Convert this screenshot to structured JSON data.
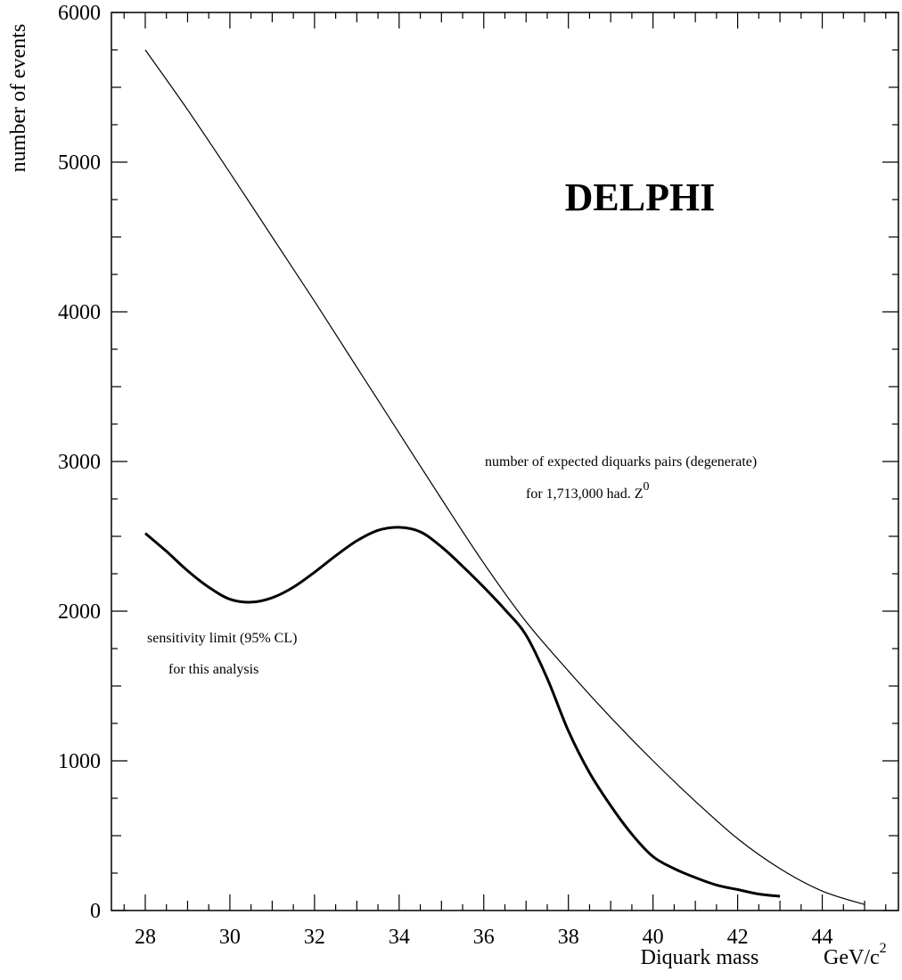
{
  "chart_data": {
    "type": "line",
    "title": "DELPHI",
    "xlabel": "Diquark mass",
    "xunit_base": "GeV/c",
    "xunit_sup": "2",
    "ylabel": "number of events",
    "xlim": [
      27.2,
      45.8
    ],
    "ylim": [
      0,
      6000
    ],
    "x_ticks": [
      28,
      30,
      32,
      34,
      36,
      38,
      40,
      42,
      44
    ],
    "y_ticks": [
      0,
      1000,
      2000,
      3000,
      4000,
      5000,
      6000
    ],
    "grid": false,
    "legend": "none",
    "series": [
      {
        "label_line1": "number of expected diquarks pairs (degenerate)",
        "label_line2_prefix": "for 1,713,000 had. Z",
        "label_line2_sup": "0",
        "stroke": "thin",
        "x": [
          28,
          29,
          30,
          31,
          32,
          33,
          34,
          35,
          36,
          37,
          38,
          39,
          40,
          41,
          42,
          43,
          44,
          45
        ],
        "y": [
          5750,
          5350,
          4930,
          4500,
          4070,
          3630,
          3190,
          2750,
          2320,
          1930,
          1600,
          1290,
          1000,
          730,
          480,
          280,
          130,
          40
        ]
      },
      {
        "label_line1": "sensitivity limit (95% CL)",
        "label_line2": "for this analysis",
        "stroke": "thick",
        "x": [
          28,
          28.5,
          29,
          29.5,
          30,
          30.5,
          31,
          31.5,
          32,
          32.5,
          33,
          33.5,
          34,
          34.5,
          35,
          35.5,
          36,
          36.5,
          37,
          37.5,
          38,
          38.5,
          39,
          39.5,
          40,
          40.5,
          41,
          41.5,
          42,
          42.5,
          43
        ],
        "y": [
          2520,
          2400,
          2270,
          2160,
          2080,
          2060,
          2090,
          2160,
          2260,
          2370,
          2470,
          2540,
          2560,
          2530,
          2430,
          2300,
          2160,
          2010,
          1840,
          1550,
          1200,
          920,
          700,
          510,
          360,
          280,
          220,
          170,
          140,
          110,
          95
        ]
      }
    ]
  }
}
